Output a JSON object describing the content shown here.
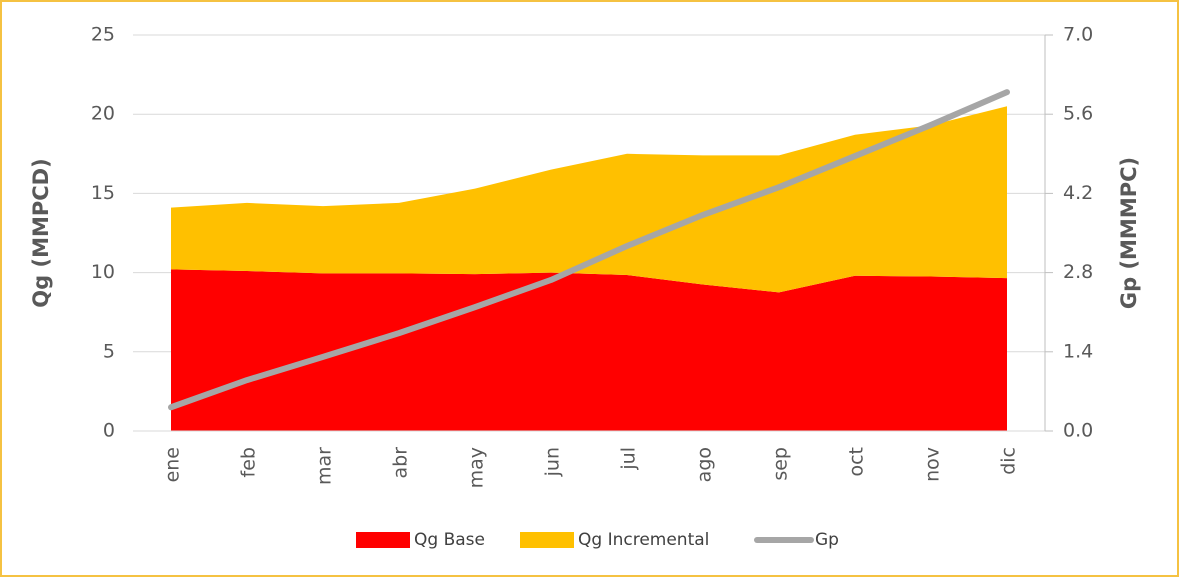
{
  "chart_data": {
    "type": "area",
    "categories": [
      "ene",
      "feb",
      "mar",
      "abr",
      "may",
      "jun",
      "jul",
      "ago",
      "sep",
      "oct",
      "nov",
      "dic"
    ],
    "series": [
      {
        "name": "Qg Base",
        "color": "#ff0000",
        "values": [
          10.2,
          10.1,
          9.95,
          9.95,
          9.9,
          10.0,
          9.85,
          9.25,
          8.75,
          9.8,
          9.75,
          9.65
        ]
      },
      {
        "name": "Qg Incremental",
        "color": "#ffc000",
        "values": [
          3.9,
          4.3,
          4.25,
          4.45,
          5.4,
          6.5,
          7.65,
          8.15,
          8.65,
          8.9,
          9.55,
          10.85
        ]
      },
      {
        "name": "Gp",
        "color": "#a6a6a6",
        "type": "line",
        "axis": "y2",
        "values": [
          0.42,
          0.9,
          1.31,
          1.73,
          2.19,
          2.67,
          3.27,
          3.82,
          4.31,
          4.86,
          5.41,
          5.99
        ]
      }
    ],
    "ylabel": "Qg (MMPCD)",
    "y2label": "Gp (MMMPC)",
    "ylim": [
      0,
      25
    ],
    "yticks": [
      0,
      5,
      10,
      15,
      20,
      25
    ],
    "y2lim": [
      0,
      7
    ],
    "y2ticks": [
      {
        "value": 0,
        "label": "0.0"
      },
      1.4,
      2.8,
      4.2,
      5.6,
      {
        "value": 7,
        "label": "7.0"
      }
    ],
    "grid": true,
    "stacked": true,
    "legend": "bottom"
  }
}
